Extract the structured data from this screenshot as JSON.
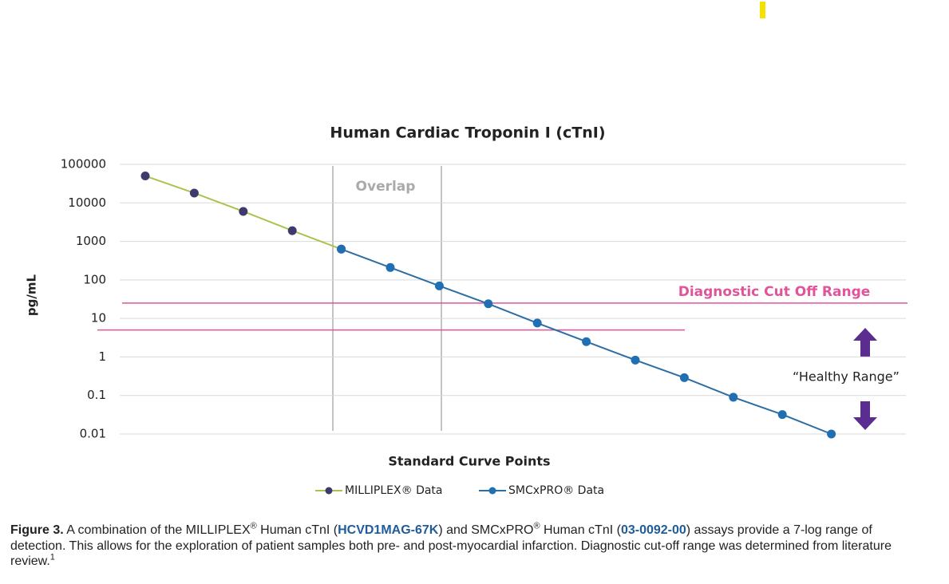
{
  "chart_data": {
    "type": "line",
    "title": "Human Cardiac Troponin I (cTnI)",
    "xlabel": "Standard Curve Points",
    "ylabel": "pg/mL",
    "categories": [
      null,
      null,
      null,
      null,
      null,
      null,
      null,
      null,
      null,
      null,
      null,
      null,
      null,
      null,
      null
    ],
    "series": [
      {
        "name": "MILLIPLEX® Data",
        "color": "#a9c44c",
        "marker_color": "#3d3b6e",
        "values": [
          50000,
          18000,
          6000,
          1900,
          630,
          null,
          null,
          null,
          null,
          null,
          null,
          null,
          null,
          null,
          null
        ]
      },
      {
        "name": "SMCxPRO® Data",
        "color": "#2c6da3",
        "marker_color": "#1f6fb2",
        "values": [
          null,
          null,
          null,
          null,
          630,
          210,
          70,
          24,
          7.6,
          2.5,
          0.83,
          0.29,
          0.09,
          0.032,
          0.01
        ]
      }
    ],
    "ylim": [
      0.01,
      100000
    ],
    "yticks": [
      0.01,
      0.1,
      1,
      10,
      100,
      1000,
      10000,
      100000
    ],
    "log_y": true,
    "grid": true,
    "cutoff_lines": [
      25,
      5
    ],
    "cutoff_color": "#e0559a",
    "annotations": {
      "overlap": "Overlap",
      "cutoff": "Diagnostic Cut Off Range",
      "healthy": "“Healthy Range”"
    }
  },
  "caption": [
    "Figure 3.",
    "  A combination of the MILLIPLEX",
    "®",
    " Human cTnI (",
    "HCVD1MAG-67K",
    ") and SMCxPRO",
    "®",
    " Human cTnI (",
    "03-0092-00",
    ") assays provide a 7-log range of detection. This allows for the exploration of patient samples both pre- and post-myocardial infarction. Diagnostic cut-off range was determined from literature review.",
    "1"
  ]
}
